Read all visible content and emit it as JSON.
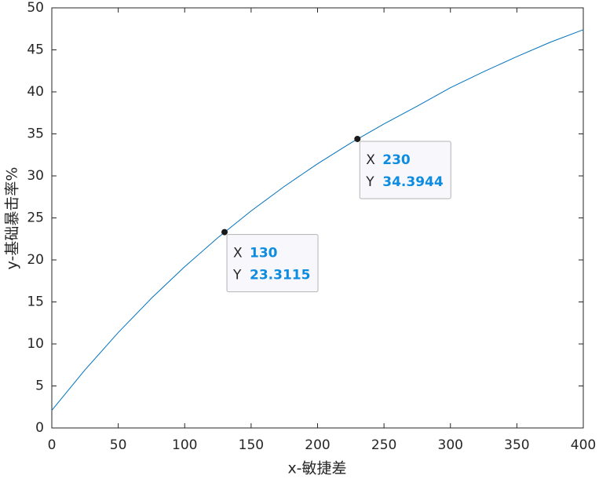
{
  "chart_data": {
    "type": "line",
    "xlabel": "x-敏捷差",
    "ylabel": "y-基础暴击率%",
    "x": [
      0,
      25,
      50,
      75,
      100,
      125,
      150,
      175,
      200,
      225,
      250,
      275,
      300,
      325,
      350,
      375,
      400
    ],
    "series": [
      {
        "color": "#0072bd",
        "values": [
          2.1,
          6.92,
          11.36,
          15.44,
          19.19,
          22.65,
          25.83,
          28.75,
          31.44,
          33.92,
          36.19,
          38.3,
          40.5,
          42.4,
          44.2,
          45.9,
          47.4
        ]
      }
    ],
    "xlim": [
      0,
      400
    ],
    "xticks": [
      0,
      50,
      100,
      150,
      200,
      250,
      300,
      350,
      400
    ],
    "ylim": [
      0,
      50
    ],
    "yticks": [
      0,
      5,
      10,
      15,
      20,
      25,
      30,
      35,
      40,
      45,
      50
    ],
    "datatip_labels": [
      "X",
      "Y"
    ],
    "datatips": [
      {
        "x": 130,
        "y": 23.3115
      },
      {
        "x": 230,
        "y": 34.3944
      }
    ]
  }
}
